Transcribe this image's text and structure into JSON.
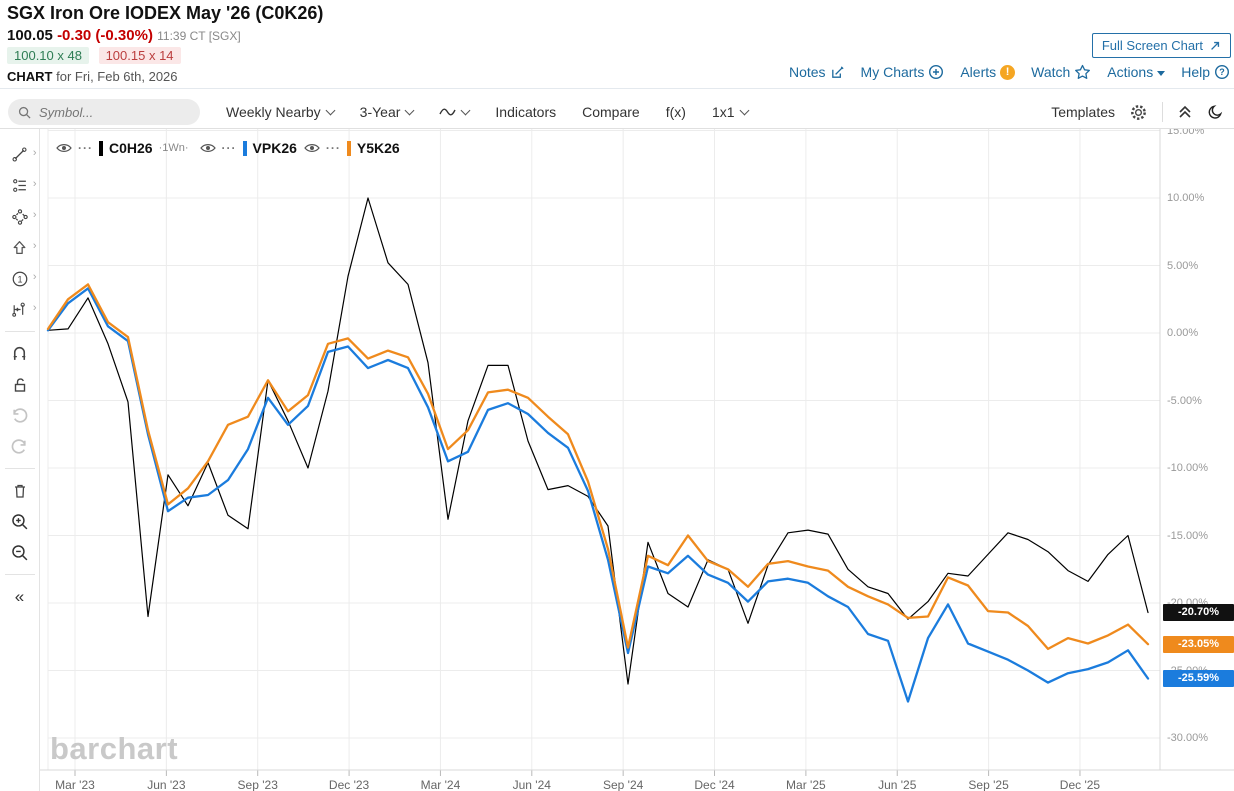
{
  "header": {
    "title": "SGX Iron Ore IODEX May '26 (C0K26)",
    "last_price": "100.05",
    "change": "-0.30 (-0.30%)",
    "quote_time": "11:39 CT [SGX]",
    "bid": "100.10 x 48",
    "ask": "100.15 x 14",
    "chart_label": "CHART",
    "chart_date": "for Fri, Feb 6th, 2026",
    "full_screen": "Full Screen Chart",
    "links": {
      "notes": "Notes",
      "my_charts": "My Charts",
      "alerts": "Alerts",
      "watch": "Watch",
      "actions": "Actions",
      "help": "Help"
    }
  },
  "toolbar": {
    "symbol_placeholder": "Symbol...",
    "frequency": "Weekly Nearby",
    "range": "3-Year",
    "indicators": "Indicators",
    "compare": "Compare",
    "fx": "f(x)",
    "layout": "1x1",
    "templates": "Templates"
  },
  "tool_rail_icons": [
    "trend-line-tool",
    "annotation-list-tool",
    "shapes-tool",
    "arrow-marker-tool",
    "number-marker-tool",
    "event-line-tool",
    "magnet-tool",
    "unlock-tool",
    "undo",
    "redo",
    "delete-tool",
    "zoom-in",
    "zoom-out",
    "collapse-rail"
  ],
  "legend": [
    {
      "symbol": "C0H26",
      "suffix": "·1Wn·",
      "color": "#000000"
    },
    {
      "symbol": "VPK26",
      "suffix": "",
      "color": "#1B7CDD"
    },
    {
      "symbol": "Y5K26",
      "suffix": "",
      "color": "#EF8A1D"
    }
  ],
  "y_axis": {
    "labels": [
      "15.00%",
      "10.00%",
      "5.00%",
      "0.00%",
      "-5.00%",
      "-10.00%",
      "-15.00%",
      "-20.00%",
      "-25.00%",
      "-30.00%"
    ],
    "values": [
      15,
      10,
      5,
      0,
      -5,
      -10,
      -15,
      -20,
      -25,
      -30
    ]
  },
  "x_axis": {
    "labels": [
      "Mar '23",
      "Jun '23",
      "Sep '23",
      "Dec '23",
      "Mar '24",
      "Jun '24",
      "Sep '24",
      "Dec '24",
      "Mar '25",
      "Jun '25",
      "Sep '25",
      "Dec '25"
    ]
  },
  "price_labels": [
    {
      "text": "-20.70%",
      "value": -20.7,
      "bg": "#111111"
    },
    {
      "text": "-23.05%",
      "value": -23.05,
      "bg": "#EF8A1D"
    },
    {
      "text": "-25.59%",
      "value": -25.59,
      "bg": "#1B7CDD"
    }
  ],
  "watermark": "barchart",
  "chart_data": {
    "type": "line",
    "title": "SGX Iron Ore IODEX May '26 (C0K26) - 3-Year Weekly Nearby percent-change comparison",
    "units": "percent change",
    "ylim": [
      -32,
      15.5
    ],
    "grid": true,
    "legend_position": "top-left",
    "x": [
      "2023-02-03",
      "2023-02-23",
      "2023-03-14",
      "2023-04-03",
      "2023-04-23",
      "2023-05-13",
      "2023-06-02",
      "2023-06-22",
      "2023-07-12",
      "2023-08-01",
      "2023-08-21",
      "2023-09-10",
      "2023-10-01",
      "2023-10-20",
      "2023-11-09",
      "2023-11-29",
      "2023-12-19",
      "2024-01-08",
      "2024-01-28",
      "2024-02-17",
      "2024-03-08",
      "2024-03-28",
      "2024-04-17",
      "2024-05-07",
      "2024-05-27",
      "2024-06-16",
      "2024-07-06",
      "2024-07-26",
      "2024-08-15",
      "2024-09-04",
      "2024-09-24",
      "2024-10-14",
      "2024-11-03",
      "2024-11-23",
      "2024-12-13",
      "2025-01-02",
      "2025-01-22",
      "2025-02-11",
      "2025-03-03",
      "2025-03-23",
      "2025-04-12",
      "2025-05-02",
      "2025-05-22",
      "2025-06-11",
      "2025-07-01",
      "2025-07-21",
      "2025-08-10",
      "2025-08-30",
      "2025-09-19",
      "2025-10-09",
      "2025-10-29",
      "2025-11-18",
      "2025-12-08",
      "2025-12-28",
      "2026-01-17",
      "2026-02-06"
    ],
    "series": [
      {
        "name": "C0H26",
        "color": "#000000",
        "width": 1.2,
        "values": [
          0.2,
          0.3,
          2.6,
          -0.8,
          -5.1,
          -21.0,
          -10.5,
          -12.8,
          -9.6,
          -13.5,
          -14.5,
          -3.5,
          -6.5,
          -10.0,
          -4.3,
          4.2,
          10.0,
          5.2,
          3.6,
          -2.2,
          -13.8,
          -6.5,
          -2.4,
          -2.4,
          -8.0,
          -11.6,
          -11.3,
          -12.1,
          -14.3,
          -26.0,
          -15.5,
          -19.3,
          -20.3,
          -16.8,
          -17.5,
          -21.5,
          -17.2,
          -14.8,
          -14.6,
          -14.9,
          -17.5,
          -18.8,
          -19.3,
          -21.2,
          -19.9,
          -17.8,
          -18.0,
          -16.4,
          -14.8,
          -15.3,
          -16.2,
          -17.6,
          -18.4,
          -16.4,
          -15.0,
          -20.7
        ]
      },
      {
        "name": "VPK26",
        "color": "#1B7CDD",
        "width": 2.3,
        "values": [
          0.2,
          2.2,
          3.3,
          0.5,
          -0.6,
          -7.5,
          -13.2,
          -12.2,
          -12.0,
          -10.9,
          -8.6,
          -4.8,
          -6.8,
          -5.4,
          -1.4,
          -1.0,
          -2.6,
          -2.0,
          -2.6,
          -5.5,
          -9.5,
          -8.8,
          -5.7,
          -5.2,
          -6.0,
          -7.4,
          -8.5,
          -11.7,
          -16.8,
          -23.7,
          -17.3,
          -17.8,
          -16.5,
          -17.9,
          -18.5,
          -19.9,
          -18.4,
          -18.2,
          -18.5,
          -19.5,
          -20.3,
          -22.3,
          -22.8,
          -27.3,
          -22.6,
          -20.1,
          -23.0,
          -23.6,
          -24.2,
          -25.0,
          -25.9,
          -25.2,
          -24.9,
          -24.4,
          -23.5,
          -25.59
        ]
      },
      {
        "name": "Y5K26",
        "color": "#EF8A1D",
        "width": 2.3,
        "values": [
          0.3,
          2.5,
          3.6,
          0.8,
          -0.3,
          -7.2,
          -12.7,
          -11.5,
          -9.5,
          -6.8,
          -6.2,
          -3.5,
          -5.8,
          -4.6,
          -0.8,
          -0.4,
          -1.9,
          -1.3,
          -1.8,
          -4.5,
          -8.6,
          -7.2,
          -4.4,
          -4.2,
          -4.8,
          -6.2,
          -7.5,
          -11.0,
          -16.0,
          -23.3,
          -16.5,
          -17.2,
          -15.0,
          -16.9,
          -17.5,
          -18.8,
          -17.1,
          -16.9,
          -17.3,
          -17.6,
          -18.8,
          -19.5,
          -20.1,
          -21.1,
          -21.0,
          -18.1,
          -18.7,
          -20.6,
          -20.7,
          -21.7,
          -23.4,
          -22.6,
          -23.0,
          -22.4,
          -21.6,
          -23.05
        ]
      }
    ]
  }
}
